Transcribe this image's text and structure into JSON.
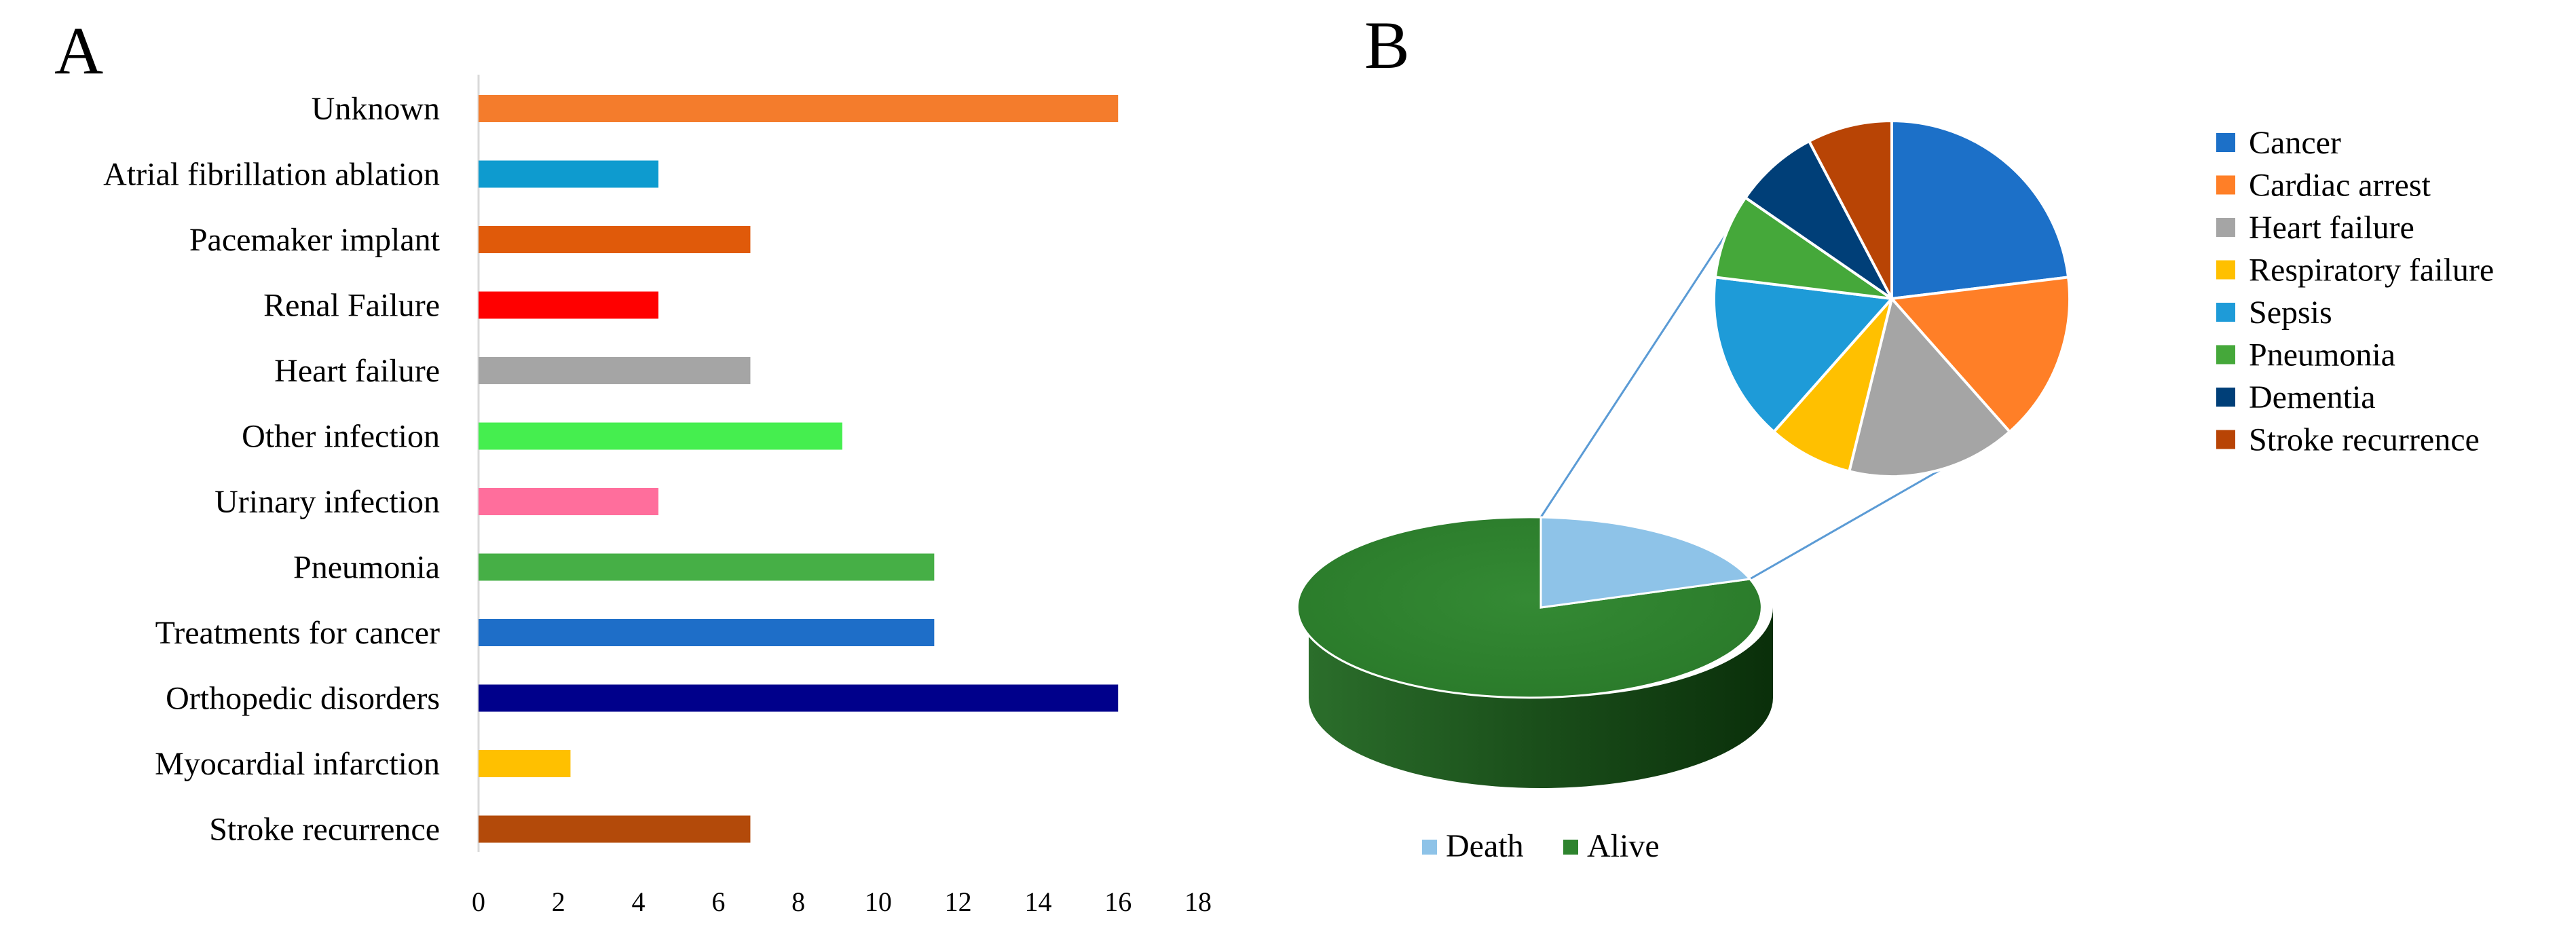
{
  "chart_data": [
    {
      "type": "bar",
      "orientation": "horizontal",
      "panel_label": "A",
      "categories": [
        "Unknown",
        "Atrial fibrillation ablation",
        "Pacemaker implant",
        "Renal Failure",
        "Heart failure",
        "Other infection",
        "Urinary infection",
        "Pneumonia",
        "Treatments for cancer",
        "Orthopedic disorders",
        "Myocardial infarction",
        "Stroke recurrence"
      ],
      "values": [
        16,
        4.5,
        6.8,
        4.5,
        6.8,
        9.1,
        4.5,
        11.4,
        11.4,
        16,
        2.3,
        6.8
      ],
      "colors": [
        "#F47C2C",
        "#0E9BCF",
        "#E05A0A",
        "#FF0000",
        "#A5A5A5",
        "#45EE4F",
        "#FF6E9C",
        "#46AF46",
        "#1E6EC8",
        "#00008B",
        "#FFC000",
        "#B34A0A"
      ],
      "xlim": [
        0,
        18
      ],
      "xticks": [
        0,
        2,
        4,
        6,
        8,
        10,
        12,
        14,
        16,
        18
      ],
      "title": "",
      "xlabel": "",
      "ylabel": ""
    },
    {
      "type": "pie",
      "panel_label": "B",
      "main_pie": {
        "labels": [
          "Death",
          "Alive"
        ],
        "values": [
          17,
          83
        ],
        "colors": [
          "#8EC3E8",
          "#2E842E"
        ]
      },
      "breakdown": {
        "labels": [
          "Cancer",
          "Cardiac arrest",
          "Heart failure",
          "Respiratory failure",
          "Sepsis",
          "Pneumonia",
          "Dementia",
          "Stroke recurrence"
        ],
        "values": [
          22.2,
          14.8,
          14.8,
          7.4,
          14.8,
          7.4,
          7.4,
          7.4
        ],
        "colors": [
          "#1C70C8",
          "#FF7F27",
          "#A5A5A5",
          "#FFC000",
          "#1E9BD8",
          "#45A83A",
          "#003F78",
          "#B84405"
        ]
      },
      "legend_position": "right",
      "main_legend_position": "bottom"
    }
  ]
}
